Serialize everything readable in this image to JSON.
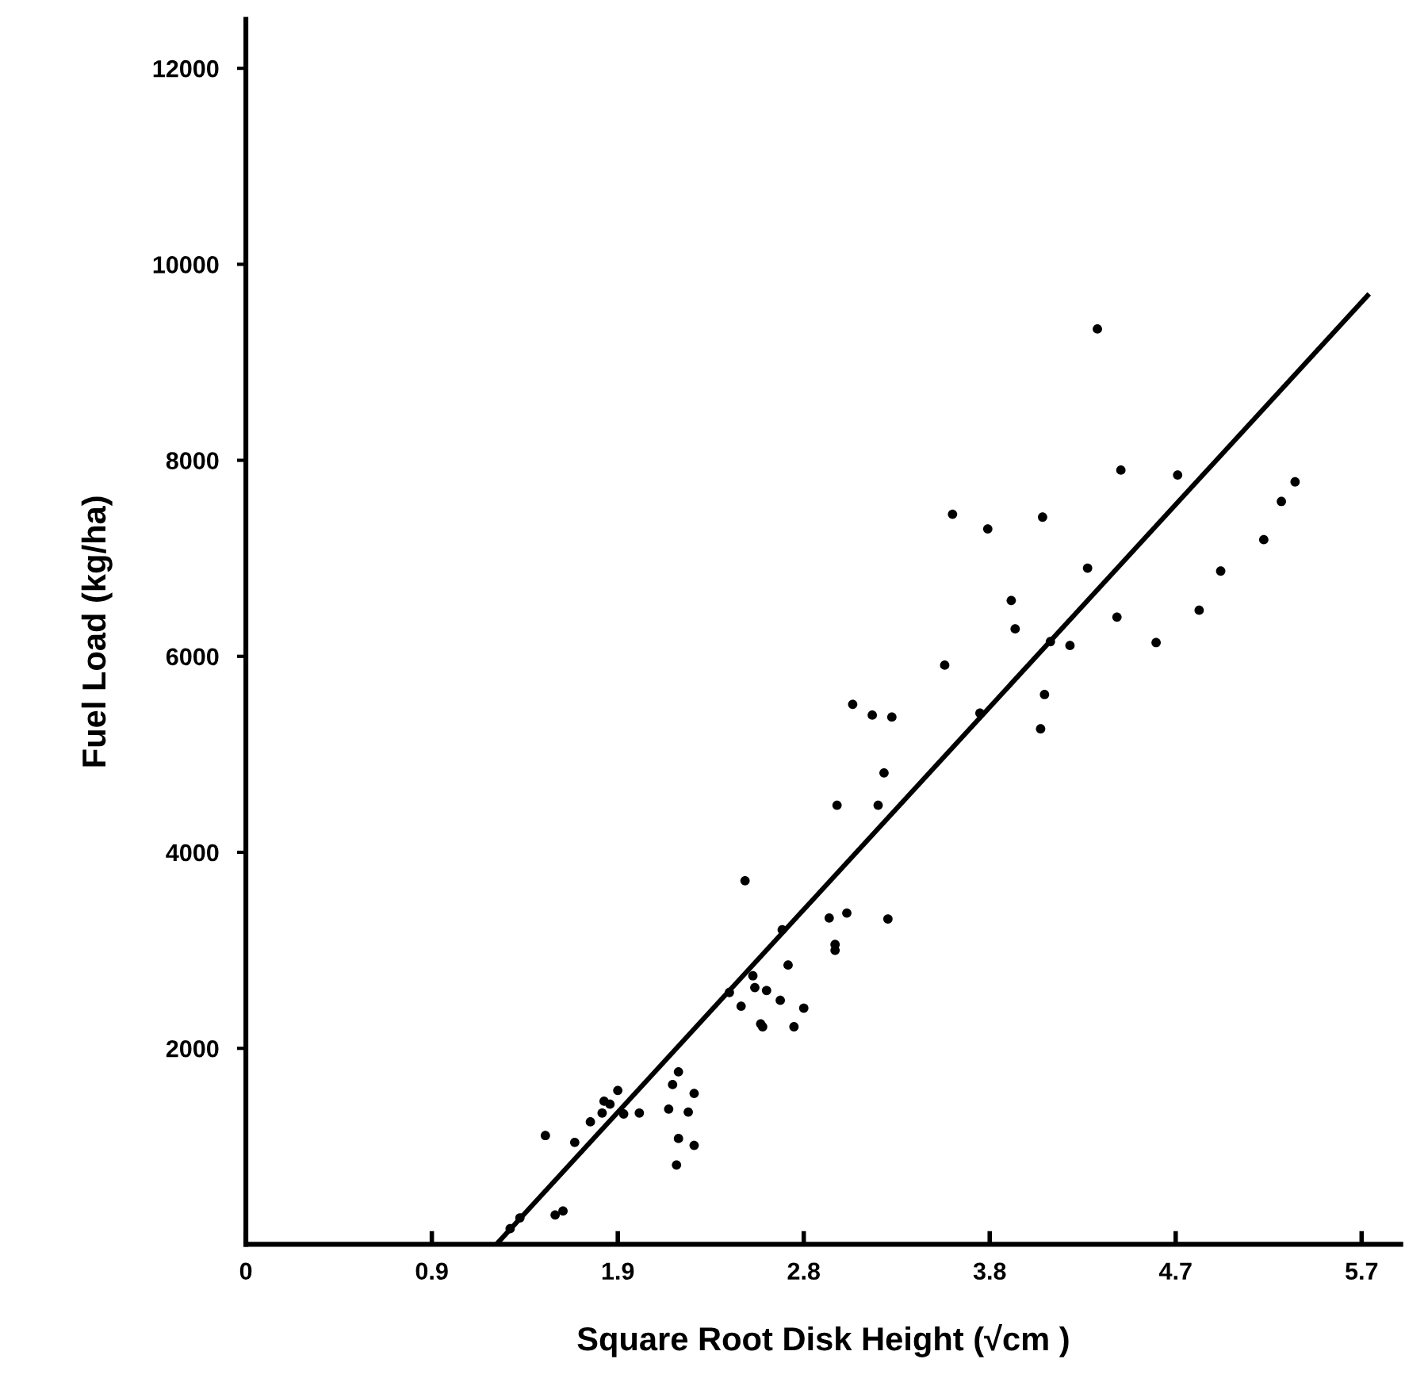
{
  "chart_data": {
    "type": "scatter",
    "xlabel": "Square Root Disk Height (√cm )",
    "ylabel": "Fuel Load (kg/ha)",
    "xlim": [
      0,
      5.9
    ],
    "ylim": [
      0,
      12500
    ],
    "xticks": [
      {
        "value": 0,
        "label": "0"
      },
      {
        "value": 0.95,
        "label": "0.9"
      },
      {
        "value": 1.9,
        "label": "1.9"
      },
      {
        "value": 2.85,
        "label": "2.8"
      },
      {
        "value": 3.8,
        "label": "3.8"
      },
      {
        "value": 4.75,
        "label": "4.7"
      },
      {
        "value": 5.7,
        "label": "5.7"
      }
    ],
    "yticks": [
      2000,
      4000,
      6000,
      8000,
      10000,
      12000
    ],
    "grid": false,
    "marker": "circle",
    "series": [
      {
        "color": "#000000",
        "x": [
          1.53,
          1.68,
          1.76,
          1.82,
          1.83,
          1.86,
          1.9,
          1.93,
          2.01,
          2.16,
          2.18,
          2.21,
          2.29,
          2.26,
          2.21,
          2.29,
          2.2,
          1.58,
          1.62,
          1.4,
          1.35,
          2.63,
          3.26,
          3.02,
          3.23,
          2.55,
          2.98,
          3.07,
          3.28,
          2.74,
          3.01,
          3.01,
          2.77,
          2.59,
          2.6,
          2.66,
          2.47,
          2.73,
          2.53,
          2.85,
          2.64,
          2.8,
          3.91,
          3.93,
          4.45,
          4.87,
          4.65,
          3.57,
          4.11,
          4.21,
          4.08,
          3.75,
          4.06,
          3.3,
          3.1,
          3.2,
          4.35,
          4.47,
          4.76,
          3.61,
          3.79,
          4.07,
          5.36,
          5.29,
          5.2,
          4.3,
          4.98
        ],
        "values": [
          1110,
          1040,
          1250,
          1340,
          1460,
          1430,
          1570,
          1330,
          1340,
          1380,
          1630,
          1760,
          1540,
          1350,
          1080,
          1010,
          810,
          300,
          340,
          270,
          160,
          2250,
          4810,
          4480,
          4480,
          3710,
          3330,
          3380,
          3320,
          3210,
          3060,
          3000,
          2850,
          2740,
          2620,
          2590,
          2570,
          2490,
          2430,
          2410,
          2220,
          2220,
          6570,
          6280,
          6400,
          6470,
          6140,
          5910,
          6150,
          6110,
          5610,
          5420,
          5260,
          5380,
          5510,
          5400,
          9340,
          7900,
          7850,
          7450,
          7300,
          7420,
          7780,
          7580,
          7190,
          6900,
          6870
        ]
      },
      {
        "type": "line",
        "color": "#000000",
        "line_style": "solid",
        "marker": "none",
        "x": [
          1.28,
          5.73
        ],
        "values": [
          0,
          9680
        ]
      }
    ]
  }
}
